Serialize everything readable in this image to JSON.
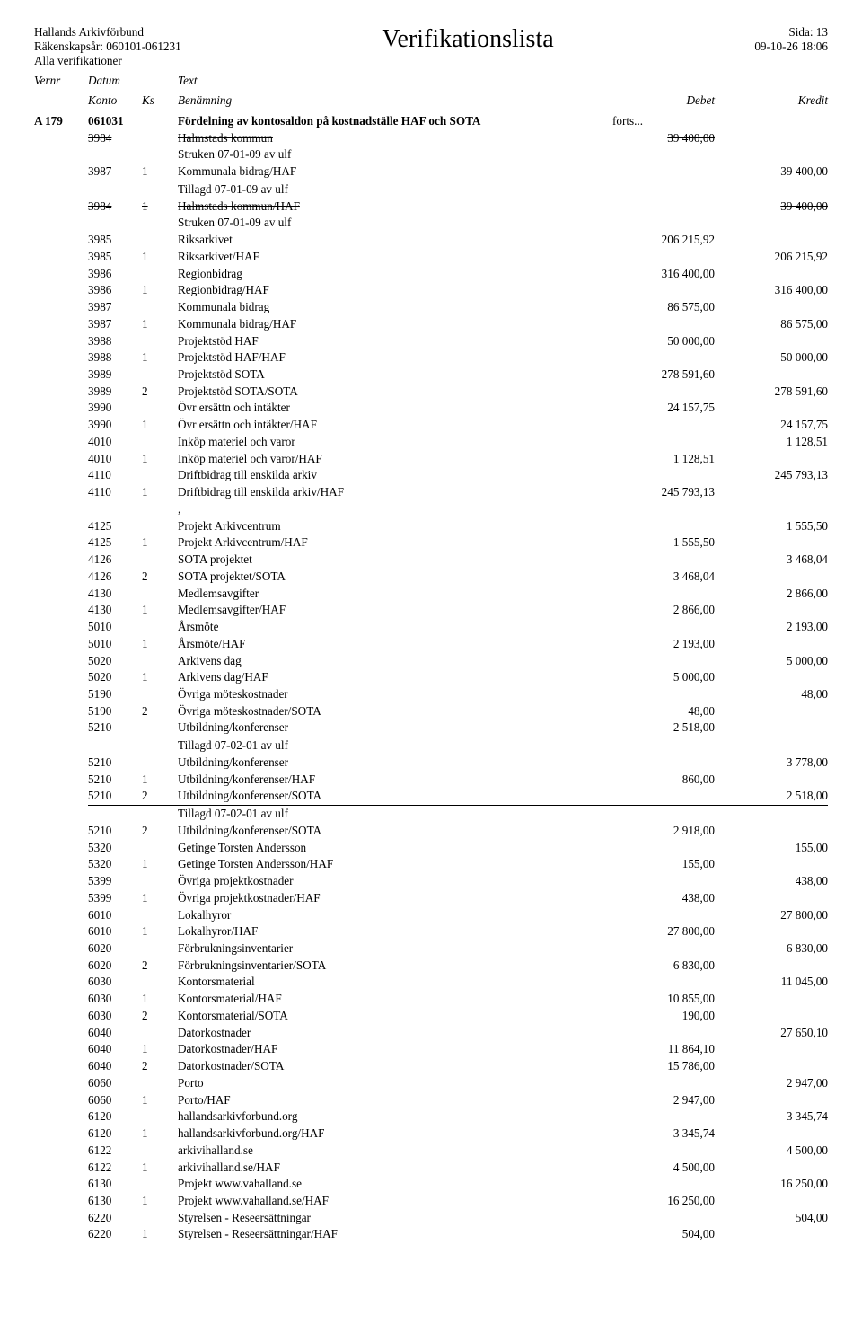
{
  "header": {
    "org": "Hallands Arkivförbund",
    "title": "Verifikationslista",
    "page": "Sida: 13",
    "fy": "Räkenskapsår: 060101-061231",
    "date": "09-10-26  18:06",
    "scope": "Alla verifikationer"
  },
  "colhdr": {
    "vernr": "Vernr",
    "datum": "Datum",
    "konto": "Konto",
    "ks": "Ks",
    "text": "Text",
    "benamning": "Benämning",
    "debet": "Debet",
    "kredit": "Kredit"
  },
  "entry": {
    "vernr": "A 179",
    "datum": "061031",
    "text": "Fördelning av kontosaldon på kostnadställe HAF och SOTA",
    "cont": "forts..."
  },
  "rows": [
    {
      "k": "3984",
      "ks": "",
      "b": "Halmstads kommun",
      "d": "39 400,00",
      "c": "",
      "strike": true
    },
    {
      "k": "",
      "ks": "",
      "b": "Struken 07-01-09 av ulf",
      "d": "",
      "c": ""
    },
    {
      "k": "3987",
      "ks": "1",
      "b": "Kommunala bidrag/HAF",
      "d": "",
      "c": "39 400,00",
      "rule": true
    },
    {
      "k": "",
      "ks": "",
      "b": "Tillagd 07-01-09 av ulf",
      "d": "",
      "c": ""
    },
    {
      "k": "3984",
      "ks": "1",
      "b": "Halmstads kommun/HAF",
      "d": "",
      "c": "39 400,00",
      "strike": true
    },
    {
      "k": "",
      "ks": "",
      "b": "Struken 07-01-09 av ulf",
      "d": "",
      "c": ""
    },
    {
      "k": "3985",
      "ks": "",
      "b": "Riksarkivet",
      "d": "206 215,92",
      "c": ""
    },
    {
      "k": "3985",
      "ks": "1",
      "b": "Riksarkivet/HAF",
      "d": "",
      "c": "206 215,92"
    },
    {
      "k": "3986",
      "ks": "",
      "b": "Regionbidrag",
      "d": "316 400,00",
      "c": ""
    },
    {
      "k": "3986",
      "ks": "1",
      "b": "Regionbidrag/HAF",
      "d": "",
      "c": "316 400,00"
    },
    {
      "k": "3987",
      "ks": "",
      "b": "Kommunala bidrag",
      "d": "86 575,00",
      "c": ""
    },
    {
      "k": "3987",
      "ks": "1",
      "b": "Kommunala bidrag/HAF",
      "d": "",
      "c": "86 575,00"
    },
    {
      "k": "3988",
      "ks": "",
      "b": "Projektstöd HAF",
      "d": "50 000,00",
      "c": ""
    },
    {
      "k": "3988",
      "ks": "1",
      "b": "Projektstöd HAF/HAF",
      "d": "",
      "c": "50 000,00"
    },
    {
      "k": "3989",
      "ks": "",
      "b": "Projektstöd SOTA",
      "d": "278 591,60",
      "c": ""
    },
    {
      "k": "3989",
      "ks": "2",
      "b": "Projektstöd SOTA/SOTA",
      "d": "",
      "c": "278 591,60"
    },
    {
      "k": "3990",
      "ks": "",
      "b": "Övr ersättn och intäkter",
      "d": "24 157,75",
      "c": ""
    },
    {
      "k": "3990",
      "ks": "1",
      "b": "Övr ersättn och intäkter/HAF",
      "d": "",
      "c": "24 157,75"
    },
    {
      "k": "4010",
      "ks": "",
      "b": "Inköp materiel och varor",
      "d": "",
      "c": "1 128,51"
    },
    {
      "k": "4010",
      "ks": "1",
      "b": "Inköp materiel och varor/HAF",
      "d": "1 128,51",
      "c": ""
    },
    {
      "k": "4110",
      "ks": "",
      "b": "Driftbidrag till enskilda arkiv",
      "d": "",
      "c": "245 793,13"
    },
    {
      "k": "4110",
      "ks": "1",
      "b": "Driftbidrag till enskilda arkiv/HAF",
      "d": "245 793,13",
      "c": ""
    },
    {
      "k": "",
      "ks": "",
      "b": ",",
      "d": "",
      "c": ""
    },
    {
      "k": "4125",
      "ks": "",
      "b": "Projekt Arkivcentrum",
      "d": "",
      "c": "1 555,50"
    },
    {
      "k": "4125",
      "ks": "1",
      "b": "Projekt Arkivcentrum/HAF",
      "d": "1 555,50",
      "c": ""
    },
    {
      "k": "4126",
      "ks": "",
      "b": "SOTA projektet",
      "d": "",
      "c": "3 468,04"
    },
    {
      "k": "4126",
      "ks": "2",
      "b": "SOTA projektet/SOTA",
      "d": "3 468,04",
      "c": ""
    },
    {
      "k": "4130",
      "ks": "",
      "b": "Medlemsavgifter",
      "d": "",
      "c": "2 866,00"
    },
    {
      "k": "4130",
      "ks": "1",
      "b": "Medlemsavgifter/HAF",
      "d": "2 866,00",
      "c": ""
    },
    {
      "k": "5010",
      "ks": "",
      "b": "Årsmöte",
      "d": "",
      "c": "2 193,00"
    },
    {
      "k": "5010",
      "ks": "1",
      "b": "Årsmöte/HAF",
      "d": "2 193,00",
      "c": ""
    },
    {
      "k": "5020",
      "ks": "",
      "b": "Arkivens dag",
      "d": "",
      "c": "5 000,00"
    },
    {
      "k": "5020",
      "ks": "1",
      "b": "Arkivens dag/HAF",
      "d": "5 000,00",
      "c": ""
    },
    {
      "k": "5190",
      "ks": "",
      "b": "Övriga möteskostnader",
      "d": "",
      "c": "48,00"
    },
    {
      "k": "5190",
      "ks": "2",
      "b": "Övriga möteskostnader/SOTA",
      "d": "48,00",
      "c": ""
    },
    {
      "k": "5210",
      "ks": "",
      "b": "Utbildning/konferenser",
      "d": "2 518,00",
      "c": "",
      "rule": true
    },
    {
      "k": "",
      "ks": "",
      "b": "Tillagd 07-02-01 av ulf",
      "d": "",
      "c": ""
    },
    {
      "k": "5210",
      "ks": "",
      "b": "Utbildning/konferenser",
      "d": "",
      "c": "3 778,00"
    },
    {
      "k": "5210",
      "ks": "1",
      "b": "Utbildning/konferenser/HAF",
      "d": "860,00",
      "c": ""
    },
    {
      "k": "5210",
      "ks": "2",
      "b": "Utbildning/konferenser/SOTA",
      "d": "",
      "c": "2 518,00",
      "rule": true
    },
    {
      "k": "",
      "ks": "",
      "b": "Tillagd 07-02-01 av ulf",
      "d": "",
      "c": ""
    },
    {
      "k": "5210",
      "ks": "2",
      "b": "Utbildning/konferenser/SOTA",
      "d": "2 918,00",
      "c": ""
    },
    {
      "k": "5320",
      "ks": "",
      "b": "Getinge Torsten Andersson",
      "d": "",
      "c": "155,00"
    },
    {
      "k": "5320",
      "ks": "1",
      "b": "Getinge Torsten Andersson/HAF",
      "d": "155,00",
      "c": ""
    },
    {
      "k": "5399",
      "ks": "",
      "b": "Övriga projektkostnader",
      "d": "",
      "c": "438,00"
    },
    {
      "k": "5399",
      "ks": "1",
      "b": "Övriga projektkostnader/HAF",
      "d": "438,00",
      "c": ""
    },
    {
      "k": "6010",
      "ks": "",
      "b": "Lokalhyror",
      "d": "",
      "c": "27 800,00"
    },
    {
      "k": "6010",
      "ks": "1",
      "b": "Lokalhyror/HAF",
      "d": "27 800,00",
      "c": ""
    },
    {
      "k": "6020",
      "ks": "",
      "b": "Förbrukningsinventarier",
      "d": "",
      "c": "6 830,00"
    },
    {
      "k": "6020",
      "ks": "2",
      "b": "Förbrukningsinventarier/SOTA",
      "d": "6 830,00",
      "c": ""
    },
    {
      "k": "6030",
      "ks": "",
      "b": "Kontorsmaterial",
      "d": "",
      "c": "11 045,00"
    },
    {
      "k": "6030",
      "ks": "1",
      "b": "Kontorsmaterial/HAF",
      "d": "10 855,00",
      "c": ""
    },
    {
      "k": "6030",
      "ks": "2",
      "b": "Kontorsmaterial/SOTA",
      "d": "190,00",
      "c": ""
    },
    {
      "k": "6040",
      "ks": "",
      "b": "Datorkostnader",
      "d": "",
      "c": "27 650,10"
    },
    {
      "k": "6040",
      "ks": "1",
      "b": "Datorkostnader/HAF",
      "d": "11 864,10",
      "c": ""
    },
    {
      "k": "6040",
      "ks": "2",
      "b": "Datorkostnader/SOTA",
      "d": "15 786,00",
      "c": ""
    },
    {
      "k": "6060",
      "ks": "",
      "b": "Porto",
      "d": "",
      "c": "2 947,00"
    },
    {
      "k": "6060",
      "ks": "1",
      "b": "Porto/HAF",
      "d": "2 947,00",
      "c": ""
    },
    {
      "k": "6120",
      "ks": "",
      "b": "hallandsarkivforbund.org",
      "d": "",
      "c": "3 345,74"
    },
    {
      "k": "6120",
      "ks": "1",
      "b": "hallandsarkivforbund.org/HAF",
      "d": "3 345,74",
      "c": ""
    },
    {
      "k": "6122",
      "ks": "",
      "b": "arkivihalland.se",
      "d": "",
      "c": "4 500,00"
    },
    {
      "k": "6122",
      "ks": "1",
      "b": "arkivihalland.se/HAF",
      "d": "4 500,00",
      "c": ""
    },
    {
      "k": "6130",
      "ks": "",
      "b": "Projekt www.vahalland.se",
      "d": "",
      "c": "16 250,00"
    },
    {
      "k": "6130",
      "ks": "1",
      "b": "Projekt www.vahalland.se/HAF",
      "d": "16 250,00",
      "c": ""
    },
    {
      "k": "6220",
      "ks": "",
      "b": "Styrelsen - Reseersättningar",
      "d": "",
      "c": "504,00"
    },
    {
      "k": "6220",
      "ks": "1",
      "b": "Styrelsen - Reseersättningar/HAF",
      "d": "504,00",
      "c": ""
    }
  ]
}
